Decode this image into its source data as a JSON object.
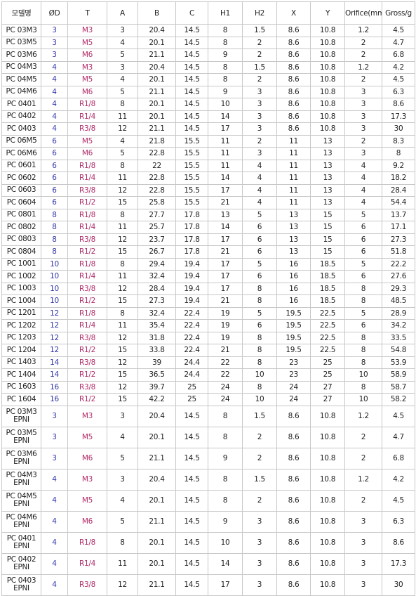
{
  "headers": [
    "모델명",
    "ØD",
    "T",
    "A",
    "B",
    "C",
    "H1",
    "H2",
    "X",
    "Y",
    "Orifice(mm",
    "Gross/g"
  ],
  "colors": {
    "od": "#3034a8",
    "thread": "#b02e6a",
    "border": "#c8c8c8"
  },
  "rows": [
    [
      "PC 03M3",
      "3",
      "M3",
      "3",
      "20.4",
      "14.5",
      "8",
      "1.5",
      "8.6",
      "10.8",
      "1.2",
      "4.5"
    ],
    [
      "PC 03M5",
      "3",
      "M5",
      "4",
      "20.1",
      "14.5",
      "8",
      "2",
      "8.6",
      "10.8",
      "2",
      "4.7"
    ],
    [
      "PC 03M6",
      "3",
      "M6",
      "5",
      "21.1",
      "14.5",
      "9",
      "2",
      "8.6",
      "10.8",
      "2",
      "6.8"
    ],
    [
      "PC 04M3",
      "4",
      "M3",
      "3",
      "20.4",
      "14.5",
      "8",
      "1.5",
      "8.6",
      "10.8",
      "1.2",
      "4.2"
    ],
    [
      "PC 04M5",
      "4",
      "M5",
      "4",
      "20.1",
      "14.5",
      "8",
      "2",
      "8.6",
      "10.8",
      "2",
      "4.5"
    ],
    [
      "PC 04M6",
      "4",
      "M6",
      "5",
      "21.1",
      "14.5",
      "9",
      "3",
      "8.6",
      "10.8",
      "3",
      "6.3"
    ],
    [
      "PC 0401",
      "4",
      "R1/8",
      "8",
      "20.1",
      "14.5",
      "10",
      "3",
      "8.6",
      "10.8",
      "3",
      "8.6"
    ],
    [
      "PC 0402",
      "4",
      "R1/4",
      "11",
      "20.1",
      "14.5",
      "14",
      "3",
      "8.6",
      "10.8",
      "3",
      "17.3"
    ],
    [
      "PC 0403",
      "4",
      "R3/8",
      "12",
      "21.1",
      "14.5",
      "17",
      "3",
      "8.6",
      "10.8",
      "3",
      "30"
    ],
    [
      "PC 06M5",
      "6",
      "M5",
      "4",
      "21.8",
      "15.5",
      "11",
      "2",
      "11",
      "13",
      "2",
      "8.3"
    ],
    [
      "PC 06M6",
      "6",
      "M6",
      "5",
      "22.8",
      "15.5",
      "11",
      "3",
      "11",
      "13",
      "3",
      "8"
    ],
    [
      "PC 0601",
      "6",
      "R1/8",
      "8",
      "22",
      "15.5",
      "11",
      "4",
      "11",
      "13",
      "4",
      "9.2"
    ],
    [
      "PC 0602",
      "6",
      "R1/4",
      "11",
      "22.8",
      "15.5",
      "14",
      "4",
      "11",
      "13",
      "4",
      "18.2"
    ],
    [
      "PC 0603",
      "6",
      "R3/8",
      "12",
      "22.8",
      "15.5",
      "17",
      "4",
      "11",
      "13",
      "4",
      "28.4"
    ],
    [
      "PC 0604",
      "6",
      "R1/2",
      "15",
      "25.8",
      "15.5",
      "21",
      "4",
      "11",
      "13",
      "4",
      "54.4"
    ],
    [
      "PC 0801",
      "8",
      "R1/8",
      "8",
      "27.7",
      "17.8",
      "13",
      "5",
      "13",
      "15",
      "5",
      "13.7"
    ],
    [
      "PC 0802",
      "8",
      "R1/4",
      "11",
      "25.7",
      "17.8",
      "14",
      "6",
      "13",
      "15",
      "6",
      "17.1"
    ],
    [
      "PC 0803",
      "8",
      "R3/8",
      "12",
      "23.7",
      "17.8",
      "17",
      "6",
      "13",
      "15",
      "6",
      "27.3"
    ],
    [
      "PC 0804",
      "8",
      "R1/2",
      "15",
      "26.7",
      "17.8",
      "21",
      "6",
      "13",
      "15",
      "6",
      "51.8"
    ],
    [
      "PC 1001",
      "10",
      "R1/8",
      "8",
      "29.4",
      "19.4",
      "17",
      "5",
      "16",
      "18.5",
      "5",
      "22.2"
    ],
    [
      "PC 1002",
      "10",
      "R1/4",
      "11",
      "32.4",
      "19.4",
      "17",
      "6",
      "16",
      "18.5",
      "6",
      "27.6"
    ],
    [
      "PC 1003",
      "10",
      "R3/8",
      "12",
      "28.4",
      "19.4",
      "17",
      "8",
      "16",
      "18.5",
      "8",
      "29.3"
    ],
    [
      "PC 1004",
      "10",
      "R1/2",
      "15",
      "27.3",
      "19.4",
      "21",
      "8",
      "16",
      "18.5",
      "8",
      "48.5"
    ],
    [
      "PC 1201",
      "12",
      "R1/8",
      "8",
      "32.4",
      "22.4",
      "19",
      "5",
      "19.5",
      "22.5",
      "5",
      "28.9"
    ],
    [
      "PC 1202",
      "12",
      "R1/4",
      "11",
      "35.4",
      "22.4",
      "19",
      "6",
      "19.5",
      "22.5",
      "6",
      "34.2"
    ],
    [
      "PC 1203",
      "12",
      "R3/8",
      "12",
      "31.8",
      "22.4",
      "19",
      "8",
      "19.5",
      "22.5",
      "8",
      "33.5"
    ],
    [
      "PC 1204",
      "12",
      "R1/2",
      "15",
      "33.8",
      "22.4",
      "21",
      "8",
      "19.5",
      "22.5",
      "8",
      "54.8"
    ],
    [
      "PC 1403",
      "14",
      "R3/8",
      "12",
      "39",
      "24.4",
      "22",
      "8",
      "23",
      "25",
      "8",
      "53.9"
    ],
    [
      "PC 1404",
      "14",
      "R1/2",
      "15",
      "36.5",
      "24.4",
      "22",
      "10",
      "23",
      "25",
      "10",
      "58.9"
    ],
    [
      "PC 1603",
      "16",
      "R3/8",
      "12",
      "39.7",
      "25",
      "24",
      "8",
      "24",
      "27",
      "8",
      "58.7"
    ],
    [
      "PC 1604",
      "16",
      "R1/2",
      "15",
      "42.2",
      "25",
      "24",
      "10",
      "24",
      "27",
      "10",
      "58.2"
    ],
    [
      "PC 03M3 EPNI",
      "3",
      "M3",
      "3",
      "20.4",
      "14.5",
      "8",
      "1.5",
      "8.6",
      "10.8",
      "1.2",
      "4.5"
    ],
    [
      "PC 03M5 EPNI",
      "3",
      "M5",
      "4",
      "20.1",
      "14.5",
      "8",
      "2",
      "8.6",
      "10.8",
      "2",
      "4.7"
    ],
    [
      "PC 03M6 EPNI",
      "3",
      "M6",
      "5",
      "21.1",
      "14.5",
      "9",
      "2",
      "8.6",
      "10.8",
      "2",
      "6.8"
    ],
    [
      "PC 04M3 EPNI",
      "4",
      "M3",
      "3",
      "20.4",
      "14.5",
      "8",
      "1.5",
      "8.6",
      "10.8",
      "1.2",
      "4.2"
    ],
    [
      "PC 04M5 EPNI",
      "4",
      "M5",
      "4",
      "20.1",
      "14.5",
      "8",
      "2",
      "8.6",
      "10.8",
      "2",
      "4.5"
    ],
    [
      "PC 04M6 EPNI",
      "4",
      "M6",
      "5",
      "21.1",
      "14.5",
      "9",
      "3",
      "8.6",
      "10.8",
      "3",
      "6.3"
    ],
    [
      "PC 0401 EPNI",
      "4",
      "R1/8",
      "8",
      "20.1",
      "14.5",
      "10",
      "3",
      "8.6",
      "10.8",
      "3",
      "8.6"
    ],
    [
      "PC 0402 EPNI",
      "4",
      "R1/4",
      "11",
      "20.1",
      "14.5",
      "14",
      "3",
      "8.6",
      "10.8",
      "3",
      "17.3"
    ],
    [
      "PC 0403 EPNI",
      "4",
      "R3/8",
      "12",
      "21.1",
      "14.5",
      "17",
      "3",
      "8.6",
      "10.8",
      "3",
      "30"
    ]
  ]
}
